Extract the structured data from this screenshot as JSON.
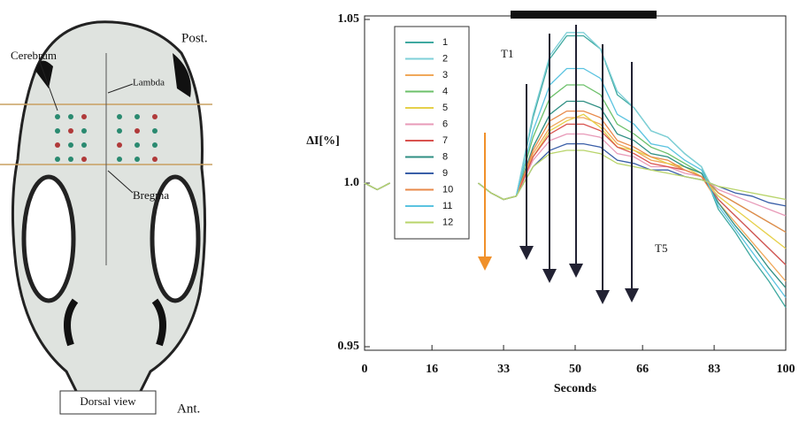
{
  "skull": {
    "labels": {
      "cerebrum": "Cerebrum",
      "post": "Post.",
      "lambda": "Lambda",
      "bregma": "Bregma",
      "view": "Dorsal view",
      "ant": "Ant."
    }
  },
  "chart_data": {
    "type": "line",
    "y_label": "ΔI[%]",
    "x_label": "Seconds",
    "annotations": [
      "T1",
      "T5"
    ],
    "xlim": [
      0,
      100
    ],
    "xticks": [
      0,
      16,
      33,
      50,
      66,
      83,
      100
    ],
    "ylim": [
      0.95,
      1.05
    ],
    "yticks": [
      0.95,
      {
        "value": 1,
        "label": "1.0"
      },
      1.05
    ],
    "x": [
      0,
      3,
      6,
      15,
      27,
      30,
      33,
      36,
      40,
      44,
      48,
      52,
      56,
      60,
      64,
      68,
      72,
      76,
      80,
      84,
      88,
      92,
      96,
      100
    ],
    "series": [
      {
        "name": "1",
        "color": "#3fa9a0",
        "values": [
          1.0,
          0.998,
          1.0,
          null,
          1.0,
          0.997,
          0.995,
          0.996,
          1.02,
          1.038,
          1.045,
          1.045,
          1.041,
          1.027,
          1.023,
          1.016,
          1.014,
          1.009,
          1.005,
          0.992,
          0.985,
          0.977,
          0.97,
          0.962
        ]
      },
      {
        "name": "2",
        "color": "#7fd0d8",
        "values": [
          1.0,
          0.998,
          1.0,
          null,
          1.0,
          0.997,
          0.995,
          0.996,
          1.021,
          1.039,
          1.046,
          1.046,
          1.041,
          1.028,
          1.023,
          1.016,
          1.014,
          1.009,
          1.005,
          0.995,
          0.99,
          0.985,
          0.98,
          0.975
        ]
      },
      {
        "name": "3",
        "color": "#f0a85a",
        "values": [
          1.0,
          0.998,
          1.0,
          null,
          1.0,
          0.997,
          0.995,
          0.996,
          1.009,
          1.017,
          1.02,
          1.02,
          1.018,
          1.012,
          1.01,
          1.007,
          1.006,
          1.004,
          1.002,
          0.994,
          0.988,
          0.982,
          0.976,
          0.97
        ]
      },
      {
        "name": "4",
        "color": "#6cc06a",
        "values": [
          1.0,
          0.998,
          1.0,
          null,
          1.0,
          0.997,
          0.995,
          0.996,
          1.014,
          1.026,
          1.03,
          1.03,
          1.027,
          1.018,
          1.015,
          1.011,
          1.009,
          1.006,
          1.003,
          0.997,
          0.994,
          0.991,
          0.988,
          0.985
        ]
      },
      {
        "name": "5",
        "color": "#e6d04a",
        "values": [
          1.0,
          0.998,
          1.0,
          null,
          1.0,
          0.997,
          0.995,
          0.996,
          1.008,
          1.016,
          1.019,
          1.021,
          1.017,
          1.011,
          1.01,
          1.008,
          1.006,
          1.005,
          1.002,
          0.996,
          0.992,
          0.988,
          0.984,
          0.98
        ]
      },
      {
        "name": "6",
        "color": "#e89ab8",
        "values": [
          1.0,
          0.998,
          1.0,
          null,
          1.0,
          0.997,
          0.995,
          0.996,
          1.007,
          1.013,
          1.015,
          1.015,
          1.014,
          1.009,
          1.008,
          1.005,
          1.005,
          1.003,
          1.002,
          0.998,
          0.996,
          0.994,
          0.992,
          0.99
        ]
      },
      {
        "name": "7",
        "color": "#d9534f",
        "values": [
          1.0,
          0.998,
          1.0,
          null,
          1.0,
          0.997,
          0.995,
          0.996,
          1.008,
          1.015,
          1.018,
          1.018,
          1.016,
          1.011,
          1.009,
          1.006,
          1.005,
          1.004,
          1.002,
          0.995,
          0.99,
          0.985,
          0.98,
          0.975
        ]
      },
      {
        "name": "8",
        "color": "#2f8f83",
        "values": [
          1.0,
          0.998,
          1.0,
          null,
          1.0,
          0.997,
          0.995,
          0.996,
          1.011,
          1.021,
          1.025,
          1.025,
          1.023,
          1.015,
          1.013,
          1.009,
          1.008,
          1.005,
          1.003,
          0.994,
          0.987,
          0.981,
          0.974,
          0.968
        ]
      },
      {
        "name": "9",
        "color": "#3a5fa8",
        "values": [
          1.0,
          0.998,
          1.0,
          null,
          1.0,
          0.997,
          0.995,
          0.996,
          1.005,
          1.01,
          1.012,
          1.012,
          1.011,
          1.007,
          1.006,
          1.004,
          1.004,
          1.002,
          1.001,
          0.999,
          0.997,
          0.996,
          0.994,
          0.993
        ]
      },
      {
        "name": "10",
        "color": "#e8894a",
        "values": [
          1.0,
          0.998,
          1.0,
          null,
          1.0,
          0.997,
          0.995,
          0.996,
          1.01,
          1.019,
          1.022,
          1.022,
          1.02,
          1.013,
          1.011,
          1.008,
          1.007,
          1.004,
          1.002,
          0.997,
          0.994,
          0.991,
          0.988,
          0.985
        ]
      },
      {
        "name": "11",
        "color": "#5bc3e0",
        "values": [
          1.0,
          0.998,
          1.0,
          null,
          1.0,
          0.997,
          0.995,
          0.996,
          1.016,
          1.03,
          1.035,
          1.035,
          1.032,
          1.021,
          1.018,
          1.012,
          1.011,
          1.007,
          1.004,
          0.993,
          0.986,
          0.979,
          0.972,
          0.965
        ]
      },
      {
        "name": "12",
        "color": "#b8d46a",
        "values": [
          1.0,
          0.998,
          1.0,
          null,
          1.0,
          0.997,
          0.995,
          0.996,
          1.005,
          1.009,
          1.01,
          1.01,
          1.009,
          1.006,
          1.005,
          1.004,
          1.003,
          1.002,
          1.001,
          0.999,
          0.998,
          0.997,
          0.996,
          0.995
        ]
      }
    ]
  }
}
